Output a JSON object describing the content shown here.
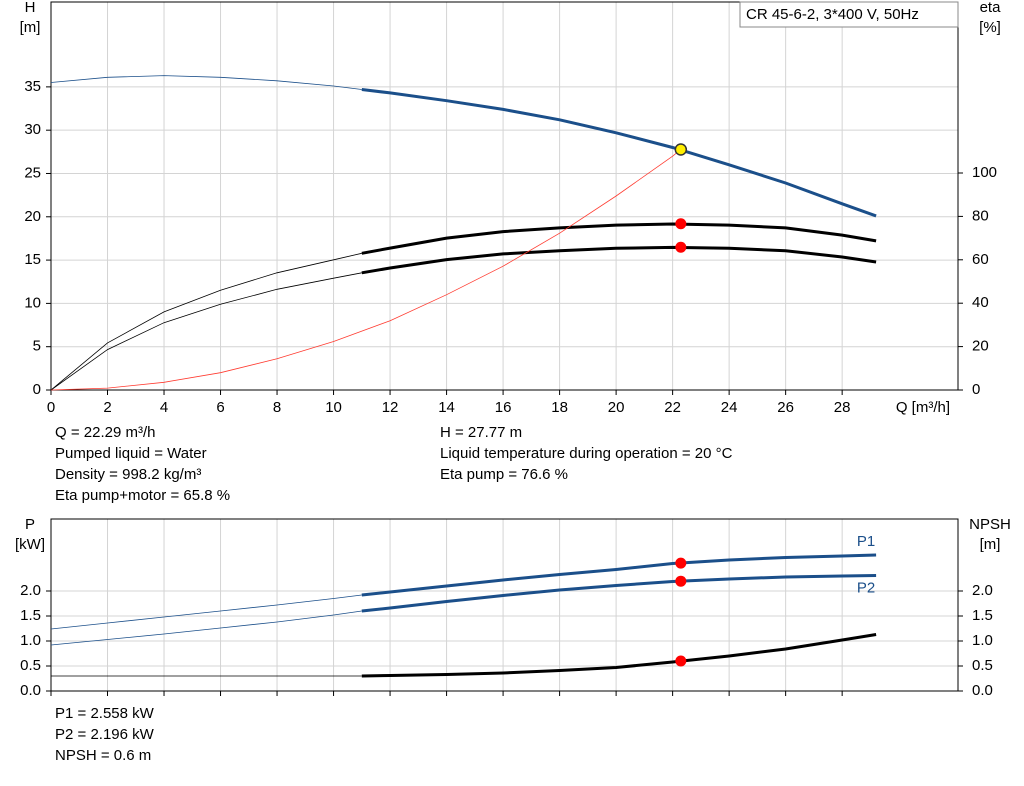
{
  "chart_data": [
    {
      "type": "line",
      "title": "CR 45-6-2, 3*400 V, 50Hz",
      "x": [
        0,
        2,
        4,
        6,
        8,
        10,
        11,
        12,
        14,
        16,
        18,
        20,
        22,
        24,
        26,
        28,
        29.2
      ],
      "xlim": [
        0,
        32.1
      ],
      "xticks": [
        0,
        2,
        4,
        6,
        8,
        10,
        12,
        14,
        16,
        18,
        20,
        22,
        24,
        26,
        28
      ],
      "xlabel": "Q [m³/h]",
      "ylabel": "H",
      "yunit": "[m]",
      "ylim": [
        0,
        44.8
      ],
      "yticks": [
        0,
        5,
        10,
        15,
        20,
        25,
        30,
        35
      ],
      "y2label": "eta",
      "y2unit": "[%]",
      "y2lim": [
        0,
        178.8
      ],
      "y2ticks": [
        0,
        20,
        40,
        60,
        80,
        100
      ],
      "grid": true,
      "operating_range": [
        11,
        29.2
      ],
      "series": [
        {
          "color": "#1b4f8a",
          "bold_in_range": true,
          "values": [
            35.5,
            36.1,
            36.3,
            36.1,
            35.7,
            35.1,
            34.7,
            34.3,
            33.4,
            32.4,
            31.2,
            29.7,
            28.0,
            26.0,
            23.9,
            21.5,
            20.1
          ]
        },
        {
          "color": "#000000",
          "bold_in_range": true,
          "axis": "y2",
          "values": [
            0,
            21.7,
            36,
            46,
            54,
            60,
            63,
            65.4,
            70,
            73,
            74.7,
            76,
            76.5,
            76,
            74.7,
            71.4,
            68.7
          ]
        },
        {
          "color": "#000000",
          "bold_in_range": true,
          "axis": "y2",
          "values": [
            0,
            18.6,
            31,
            39.5,
            46.4,
            51.5,
            54,
            56.2,
            60.1,
            62.7,
            64.2,
            65.3,
            65.7,
            65.3,
            64.2,
            61.3,
            59
          ]
        },
        {
          "color": "#ff3b30",
          "bold_in_range": false,
          "x": [
            0,
            2,
            4,
            6,
            8,
            10,
            12,
            14,
            16,
            18,
            20,
            22,
            22.29
          ],
          "values": [
            0,
            0.22,
            0.89,
            2.0,
            3.6,
            5.6,
            8.0,
            11.0,
            14.3,
            18.1,
            22.4,
            27.0,
            27.77
          ]
        }
      ],
      "duty_point": {
        "x": 22.29,
        "markers": [
          {
            "value": 27.77,
            "color": "#ffee00"
          },
          {
            "value": 76.6,
            "axis": "y2",
            "color": "#ff0000"
          },
          {
            "value": 65.8,
            "axis": "y2",
            "color": "#ff0000"
          }
        ]
      },
      "annotations": [
        [
          "Q = 22.29 m³/h",
          "Pumped liquid = Water",
          "Density = 998.2 kg/m³",
          "Eta pump+motor = 65.8 %"
        ],
        [
          "H = 27.77 m",
          "Liquid temperature during operation = 20 °C",
          "Eta pump = 76.6 %"
        ]
      ]
    },
    {
      "type": "line",
      "x": [
        0,
        2,
        4,
        6,
        8,
        10,
        11,
        12,
        14,
        16,
        18,
        20,
        22,
        24,
        26,
        28,
        29.2
      ],
      "xlim": [
        0,
        32.1
      ],
      "xticks": [
        0,
        2,
        4,
        6,
        8,
        10,
        12,
        14,
        16,
        18,
        20,
        22,
        24,
        26,
        28
      ],
      "xtick_labels": false,
      "ylabel": "P",
      "yunit": "[kW]",
      "ylim": [
        0,
        3.44
      ],
      "yticks": [
        {
          "value": 0,
          "label": "0.0"
        },
        0.5,
        {
          "value": 1,
          "label": "1.0"
        },
        1.5,
        {
          "value": 2,
          "label": "2.0"
        }
      ],
      "y2label": "NPSH",
      "y2unit": "[m]",
      "y2lim": [
        0,
        3.44
      ],
      "y2ticks": [
        {
          "value": 0,
          "label": "0.0"
        },
        0.5,
        {
          "value": 1,
          "label": "1.0"
        },
        1.5,
        {
          "value": 2,
          "label": "2.0"
        }
      ],
      "grid": true,
      "operating_range": [
        11,
        29.2
      ],
      "series": [
        {
          "name": "P1",
          "color": "#1b4f8a",
          "bold_in_range": true,
          "label_position": "above",
          "values": [
            1.24,
            1.36,
            1.48,
            1.6,
            1.72,
            1.85,
            1.92,
            1.98,
            2.1,
            2.22,
            2.33,
            2.43,
            2.55,
            2.62,
            2.67,
            2.7,
            2.72
          ]
        },
        {
          "name": "P2",
          "color": "#1b4f8a",
          "bold_in_range": true,
          "label_position": "below",
          "values": [
            0.92,
            1.03,
            1.14,
            1.26,
            1.38,
            1.52,
            1.6,
            1.66,
            1.79,
            1.91,
            2.02,
            2.11,
            2.19,
            2.24,
            2.28,
            2.3,
            2.31
          ]
        },
        {
          "color": "#000000",
          "bold_in_range": true,
          "axis": "y2",
          "values": [
            0.3,
            0.3,
            0.3,
            0.3,
            0.3,
            0.3,
            0.3,
            0.31,
            0.33,
            0.36,
            0.41,
            0.47,
            0.58,
            0.7,
            0.84,
            1.02,
            1.13
          ]
        }
      ],
      "duty_point": {
        "x": 22.29,
        "markers": [
          {
            "value": 2.558,
            "color": "#ff0000"
          },
          {
            "value": 2.196,
            "color": "#ff0000"
          },
          {
            "value": 0.6,
            "axis": "y2",
            "color": "#ff0000"
          }
        ]
      },
      "annotations": [
        [
          "P1 = 2.558 kW",
          "P2 = 2.196 kW",
          "NPSH = 0.6 m"
        ]
      ]
    }
  ]
}
